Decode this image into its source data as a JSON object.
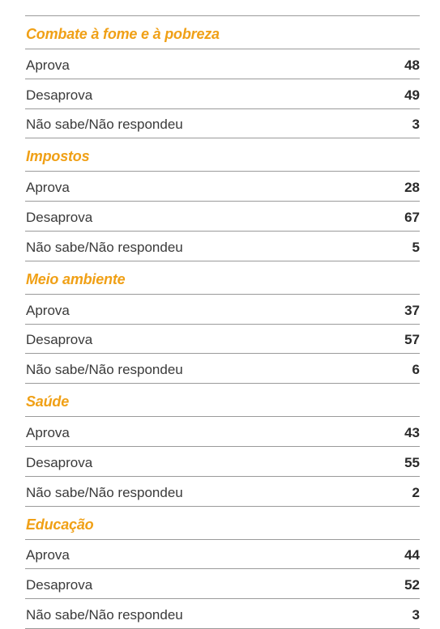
{
  "sections": [
    {
      "title": "Combate à fome e à pobreza",
      "rows": [
        {
          "label": "Aprova",
          "value": "48"
        },
        {
          "label": "Desaprova",
          "value": "49"
        },
        {
          "label": "Não sabe/Não respondeu",
          "value": "3"
        }
      ]
    },
    {
      "title": "Impostos",
      "rows": [
        {
          "label": "Aprova",
          "value": "28"
        },
        {
          "label": "Desaprova",
          "value": "67"
        },
        {
          "label": "Não sabe/Não respondeu",
          "value": "5"
        }
      ]
    },
    {
      "title": "Meio ambiente",
      "rows": [
        {
          "label": "Aprova",
          "value": "37"
        },
        {
          "label": "Desaprova",
          "value": "57"
        },
        {
          "label": "Não sabe/Não respondeu",
          "value": "6"
        }
      ]
    },
    {
      "title": "Saúde",
      "rows": [
        {
          "label": "Aprova",
          "value": "43"
        },
        {
          "label": "Desaprova",
          "value": "55"
        },
        {
          "label": "Não sabe/Não respondeu",
          "value": "2"
        }
      ]
    },
    {
      "title": "Educação",
      "rows": [
        {
          "label": "Aprova",
          "value": "44"
        },
        {
          "label": "Desaprova",
          "value": "52"
        },
        {
          "label": "Não sabe/Não respondeu",
          "value": "3"
        }
      ]
    }
  ],
  "colors": {
    "section_title": "#f0a016",
    "divider": "#9a9a9a",
    "text": "#3a3a3a"
  }
}
